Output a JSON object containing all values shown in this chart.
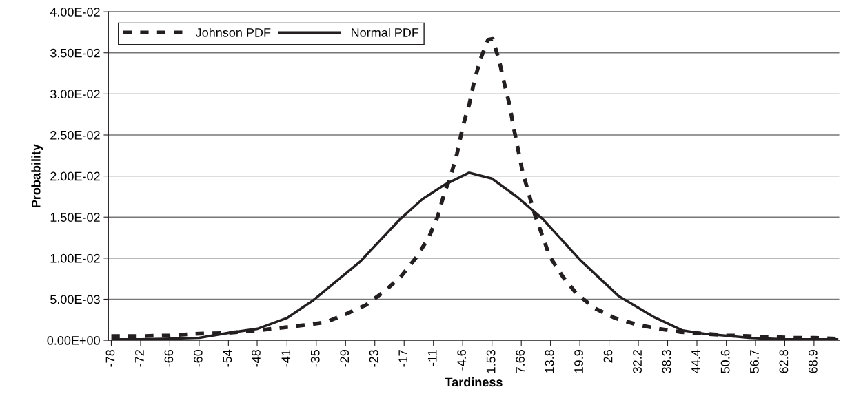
{
  "chart_data": {
    "type": "line",
    "xlabel": "Tardiness",
    "ylabel": "Probability",
    "xlim": [
      -78.7,
      74.2
    ],
    "ylim": [
      0,
      0.04
    ],
    "xticks": [
      {
        "value": -78.11,
        "label": "-78"
      },
      {
        "value": -71.98,
        "label": "-72"
      },
      {
        "value": -65.86,
        "label": "-66"
      },
      {
        "value": -59.73,
        "label": "-60"
      },
      {
        "value": -53.61,
        "label": "-54"
      },
      {
        "value": -47.6,
        "label": "-48"
      },
      {
        "value": -41.35,
        "label": "-41"
      },
      {
        "value": -35.23,
        "label": "-35"
      },
      {
        "value": -29.1,
        "label": "-29"
      },
      {
        "value": -22.98,
        "label": "-23"
      },
      {
        "value": -16.85,
        "label": "-17"
      },
      {
        "value": -10.72,
        "label": "-11"
      },
      {
        "value": -4.6,
        "label": "-4.6"
      },
      {
        "value": 1.53,
        "label": "1.53"
      },
      {
        "value": 7.66,
        "label": "7.66"
      },
      {
        "value": 13.78,
        "label": "13.8"
      },
      {
        "value": 19.91,
        "label": "19.9"
      },
      {
        "value": 26.03,
        "label": "26"
      },
      {
        "value": 32.16,
        "label": "32.2"
      },
      {
        "value": 38.28,
        "label": "38.3"
      },
      {
        "value": 44.41,
        "label": "44.4"
      },
      {
        "value": 50.56,
        "label": "50.6"
      },
      {
        "value": 56.66,
        "label": "56.7"
      },
      {
        "value": 62.79,
        "label": "62.8"
      },
      {
        "value": 68.91,
        "label": "68.9"
      }
    ],
    "yticks": [
      {
        "value": 0,
        "label": "0.00E+00"
      },
      {
        "value": 0.005,
        "label": "5.00E-03"
      },
      {
        "value": 0.01,
        "label": "1.00E-02"
      },
      {
        "value": 0.015,
        "label": "1.50E-02"
      },
      {
        "value": 0.02,
        "label": "2.00E-02"
      },
      {
        "value": 0.025,
        "label": "2.50E-02"
      },
      {
        "value": 0.03,
        "label": "3.00E-02"
      },
      {
        "value": 0.035,
        "label": "3.50E-02"
      },
      {
        "value": 0.04,
        "label": "4.00E-02"
      }
    ],
    "grid": "y",
    "legend": "top left",
    "series": [
      {
        "name": "Johnson PDF",
        "color": "#231f20",
        "line_style": "dashed",
        "x": [
          -78.1,
          -72.0,
          -65.9,
          -59.7,
          -53.6,
          -47.5,
          -41.4,
          -37.0,
          -33.2,
          -28.6,
          -24.8,
          -20.9,
          -17.6,
          -14.3,
          -11.7,
          -9.8,
          -8.5,
          -7.1,
          -5.8,
          -4.5,
          -3.2,
          -2.2,
          -0.9,
          0.7,
          1.7,
          3.1,
          4.1,
          5.2,
          6.0,
          7.0,
          7.9,
          9.2,
          10.5,
          12.1,
          13.6,
          16.4,
          19.2,
          23.0,
          27.3,
          31.9,
          36.5,
          41.1,
          50.6,
          55.3,
          59.8,
          64.5,
          69.0,
          73.5
        ],
        "values": [
          0.0005,
          0.0005,
          0.0006,
          0.0008,
          0.0009,
          0.0012,
          0.0016,
          0.0019,
          0.0022,
          0.0033,
          0.0043,
          0.006,
          0.0077,
          0.0101,
          0.0125,
          0.0151,
          0.0178,
          0.02,
          0.0227,
          0.0262,
          0.0288,
          0.0315,
          0.0342,
          0.0366,
          0.0367,
          0.0339,
          0.0313,
          0.0287,
          0.0261,
          0.0232,
          0.0206,
          0.0179,
          0.0153,
          0.0127,
          0.0102,
          0.0077,
          0.0057,
          0.0039,
          0.0027,
          0.0019,
          0.0014,
          0.001,
          0.0006,
          0.0005,
          0.0004,
          0.0003,
          0.0003,
          0.0002
        ]
      },
      {
        "name": "Normal PDF",
        "color": "#231f20",
        "line_style": "solid",
        "x": [
          -78.1,
          -72.0,
          -65.9,
          -59.7,
          -53.6,
          -47.5,
          -41.4,
          -35.8,
          -26.0,
          -17.6,
          -13.0,
          -8.5,
          -3.3,
          1.5,
          6.7,
          12.1,
          20.1,
          28.0,
          35.5,
          41.4,
          45.9,
          55.3,
          63.0,
          69.0,
          74.0
        ],
        "values": [
          0.0001,
          0.0001,
          0.0002,
          0.0003,
          0.0009,
          0.0014,
          0.0027,
          0.0049,
          0.0096,
          0.0148,
          0.0172,
          0.0189,
          0.0204,
          0.0197,
          0.0175,
          0.0148,
          0.0097,
          0.0054,
          0.0028,
          0.0012,
          0.0008,
          0.0003,
          0.0001,
          0.0001,
          0.0001
        ]
      }
    ]
  }
}
